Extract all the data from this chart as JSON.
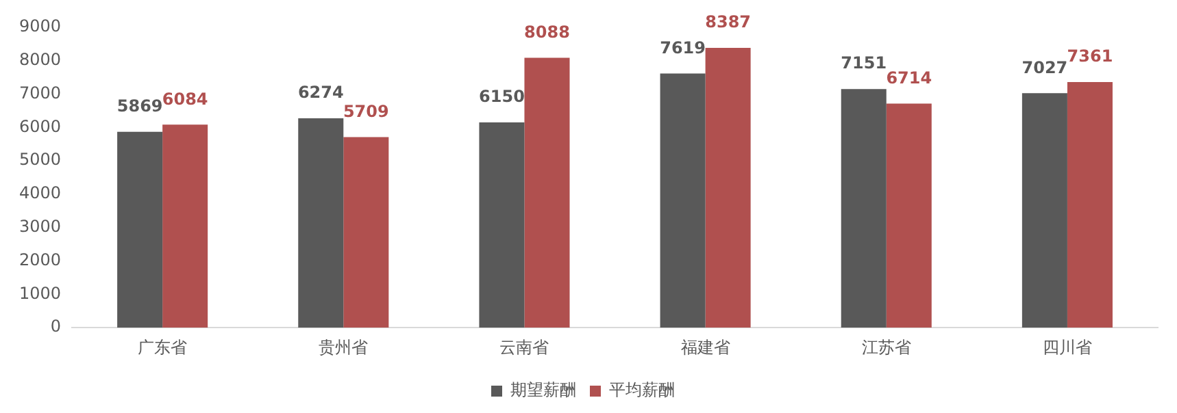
{
  "chart_data": {
    "type": "bar",
    "categories": [
      "广东省",
      "贵州省",
      "云南省",
      "福建省",
      "江苏省",
      "四川省"
    ],
    "series": [
      {
        "name": "期望薪酬",
        "color": "#595959",
        "values": [
          5869,
          6274,
          6150,
          7619,
          7151,
          7027
        ]
      },
      {
        "name": "平均薪酬",
        "color": "#b0504f",
        "values": [
          6084,
          5709,
          8088,
          8387,
          6714,
          7361
        ]
      }
    ],
    "ylim": [
      0,
      9000
    ],
    "yticks": [
      0,
      1000,
      2000,
      3000,
      4000,
      5000,
      6000,
      7000,
      8000,
      9000
    ],
    "grid": false,
    "legend": "bottom",
    "data_labels": true
  }
}
